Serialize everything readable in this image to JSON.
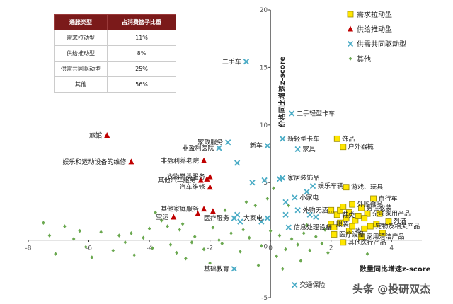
{
  "share_table": {
    "headers": [
      "通胀类型",
      "占消费篮子比重"
    ],
    "rows": [
      [
        "需求拉动型",
        "11%"
      ],
      [
        "供给推动型",
        "8%"
      ],
      [
        "供需共同驱动型",
        "25%"
      ],
      [
        "其他",
        "56%"
      ]
    ]
  },
  "watermark": "头条 @投研双杰",
  "chart_data": {
    "type": "scatter",
    "xlabel": "数量同比增速z-score",
    "ylabel": "价格同比增速z-score",
    "xlim": [
      -8,
      5
    ],
    "ylim": [
      -5,
      20
    ],
    "xticks": [
      "-8",
      "-6",
      "-4",
      "-2",
      "0",
      "2",
      "4"
    ],
    "yticks": [
      "-5",
      "0",
      "5",
      "10",
      "15",
      "20"
    ],
    "legend_position": "top-right",
    "colors": {
      "demand": "#f2d500",
      "supply": "#c00000",
      "both": "#4bacc6",
      "other": "#6aa84f"
    },
    "series": [
      {
        "key": "demand",
        "name": "需求拉动型",
        "marker": "square",
        "points": [
          {
            "x": 2.2,
            "y": 8.8,
            "label": "饰品"
          },
          {
            "x": 2.4,
            "y": 8.1,
            "label": "户外器械"
          },
          {
            "x": 2.5,
            "y": 4.6,
            "label": "游戏、玩具"
          },
          {
            "x": 3.4,
            "y": 3.6,
            "label": "自行车"
          },
          {
            "x": 2.7,
            "y": 3.1,
            "label": "外购食品"
          },
          {
            "x": 3.0,
            "y": 2.8,
            "label": "男性衣装"
          },
          {
            "x": 3.2,
            "y": 2.3,
            "label": "杂项家用产品"
          },
          {
            "x": 3.9,
            "y": 1.6,
            "label": "烈酒"
          },
          {
            "x": 3.3,
            "y": 1.2,
            "label": "宠物及相关产品"
          },
          {
            "x": 2.6,
            "y": 0.8,
            "label": "啤"
          },
          {
            "x": 2.1,
            "y": 0.5,
            "label": "医疗设备"
          },
          {
            "x": 3.0,
            "y": 0.3,
            "label": "家用清洁产品"
          },
          {
            "x": 2.4,
            "y": -0.2,
            "label": "其他医疗产品"
          },
          {
            "x": 2.2,
            "y": 2.2,
            "label": "鞋类"
          },
          {
            "x": 2.0,
            "y": 1.4,
            "label": "服装"
          },
          {
            "x": 2.3,
            "y": 2.6,
            "label": ""
          },
          {
            "x": 2.5,
            "y": 1.9,
            "label": ""
          },
          {
            "x": 2.8,
            "y": 1.7,
            "label": ""
          },
          {
            "x": 2.6,
            "y": 2.4,
            "label": ""
          },
          {
            "x": 3.1,
            "y": 1.9,
            "label": ""
          },
          {
            "x": 3.5,
            "y": 1.4,
            "label": ""
          },
          {
            "x": 3.6,
            "y": 2.3,
            "label": ""
          },
          {
            "x": 2.9,
            "y": 2.1,
            "label": ""
          },
          {
            "x": 2.3,
            "y": 1.5,
            "label": ""
          },
          {
            "x": 2.7,
            "y": 1.2,
            "label": ""
          },
          {
            "x": 3.1,
            "y": 1.0,
            "label": ""
          },
          {
            "x": 2.1,
            "y": 1.1,
            "label": ""
          },
          {
            "x": 3.7,
            "y": 0.6,
            "label": ""
          },
          {
            "x": 2.4,
            "y": 2.9,
            "label": ""
          },
          {
            "x": 2.0,
            "y": 2.6,
            "label": ""
          }
        ]
      },
      {
        "key": "supply",
        "name": "供给推动型",
        "marker": "triangle",
        "points": [
          {
            "x": -5.4,
            "y": 9.1,
            "label": "旅馆"
          },
          {
            "x": -4.6,
            "y": 6.8,
            "label": "娱乐和运动设备的维修"
          },
          {
            "x": -2.2,
            "y": 6.9,
            "label": "非盈利养老院"
          },
          {
            "x": -2.0,
            "y": 5.5,
            "label": "衣物鞋类服务"
          },
          {
            "x": -2.3,
            "y": 5.2,
            "label": "其他汽车服务"
          },
          {
            "x": -2.0,
            "y": 4.6,
            "label": "汽车维修"
          },
          {
            "x": -2.2,
            "y": 2.7,
            "label": "其他家庭服务"
          },
          {
            "x": -1.9,
            "y": 2.5,
            "label": ""
          },
          {
            "x": -2.4,
            "y": 2.3,
            "label": ""
          },
          {
            "x": -3.2,
            "y": 2.0,
            "label": "空运"
          },
          {
            "x": -2.1,
            "y": 5.3,
            "label": ""
          }
        ]
      },
      {
        "key": "both",
        "name": "供需共同驱动型",
        "marker": "x",
        "points": [
          {
            "x": -0.8,
            "y": 15.5,
            "label": "二手车"
          },
          {
            "x": 0.7,
            "y": 11.0,
            "label": "二手轻型卡车"
          },
          {
            "x": -1.4,
            "y": 8.5,
            "label": "家政服务"
          },
          {
            "x": -1.7,
            "y": 8.0,
            "label": "非盈利医院"
          },
          {
            "x": 0.4,
            "y": 8.8,
            "label": "新轻型卡车"
          },
          {
            "x": -0.1,
            "y": 8.2,
            "label": "新车"
          },
          {
            "x": 0.9,
            "y": 7.9,
            "label": "家具"
          },
          {
            "x": -1.1,
            "y": 6.7,
            "label": ""
          },
          {
            "x": 0.4,
            "y": 5.4,
            "label": "家居装饰品"
          },
          {
            "x": 1.4,
            "y": 4.7,
            "label": "娱乐车辆"
          },
          {
            "x": 1.2,
            "y": 4.2,
            "label": ""
          },
          {
            "x": 0.8,
            "y": 3.7,
            "label": "小家电"
          },
          {
            "x": 0.9,
            "y": 2.6,
            "label": "外购无酒…"
          },
          {
            "x": 1.3,
            "y": 2.2,
            "label": ""
          },
          {
            "x": 1.5,
            "y": 2.0,
            "label": ""
          },
          {
            "x": -0.1,
            "y": 1.9,
            "label": "大家电"
          },
          {
            "x": -1.2,
            "y": 1.9,
            "label": "医疗服务"
          },
          {
            "x": -1.0,
            "y": 1.6,
            "label": ""
          },
          {
            "x": -1.1,
            "y": 2.2,
            "label": ""
          },
          {
            "x": 0.6,
            "y": 1.1,
            "label": "信息处理设备"
          },
          {
            "x": -0.2,
            "y": 5.2,
            "label": ""
          },
          {
            "x": 0.3,
            "y": 5.3,
            "label": ""
          },
          {
            "x": -0.6,
            "y": 5.0,
            "label": ""
          },
          {
            "x": 0.5,
            "y": 3.3,
            "label": ""
          },
          {
            "x": -0.3,
            "y": 1.6,
            "label": ""
          },
          {
            "x": 0.5,
            "y": 2.2,
            "label": ""
          },
          {
            "x": -1.2,
            "y": -2.5,
            "label": "基础教育"
          },
          {
            "x": 0.8,
            "y": -3.9,
            "label": "交通保险"
          }
        ]
      },
      {
        "key": "other",
        "name": "其他",
        "marker": "diamond",
        "points": [
          {
            "x": -7.5,
            "y": 1.5
          },
          {
            "x": -7.3,
            "y": 0.4
          },
          {
            "x": -6.8,
            "y": 1.2
          },
          {
            "x": -7.1,
            "y": -1.2
          },
          {
            "x": -6.3,
            "y": 0.8
          },
          {
            "x": -6.1,
            "y": -0.6
          },
          {
            "x": -5.9,
            "y": -1.5
          },
          {
            "x": -5.6,
            "y": 0.7
          },
          {
            "x": -5.2,
            "y": -0.9
          },
          {
            "x": -4.8,
            "y": -0.2
          },
          {
            "x": -4.5,
            "y": -1.3
          },
          {
            "x": -4.2,
            "y": 0.2
          },
          {
            "x": -3.9,
            "y": -0.7
          },
          {
            "x": -3.6,
            "y": 1.7
          },
          {
            "x": -3.3,
            "y": -0.4
          },
          {
            "x": -3.0,
            "y": 0.9
          },
          {
            "x": -2.8,
            "y": -1.6
          },
          {
            "x": -2.5,
            "y": 0.3
          },
          {
            "x": -2.2,
            "y": -0.8
          },
          {
            "x": -1.9,
            "y": 1.1
          },
          {
            "x": -1.6,
            "y": -0.3
          },
          {
            "x": -1.3,
            "y": 0.6
          },
          {
            "x": -1.0,
            "y": -1.0
          },
          {
            "x": -0.7,
            "y": 0.2
          },
          {
            "x": -0.5,
            "y": 3.0
          },
          {
            "x": -0.3,
            "y": -0.5
          },
          {
            "x": 0.0,
            "y": 0.8
          },
          {
            "x": 0.2,
            "y": -1.4
          },
          {
            "x": 0.3,
            "y": 0.4
          },
          {
            "x": 0.5,
            "y": -0.8
          },
          {
            "x": 0.7,
            "y": 0.1
          },
          {
            "x": 0.9,
            "y": -0.4
          },
          {
            "x": 1.1,
            "y": 0.6
          },
          {
            "x": 1.3,
            "y": -0.9
          },
          {
            "x": 1.5,
            "y": 0.3
          },
          {
            "x": 1.7,
            "y": -0.3
          },
          {
            "x": 1.9,
            "y": -1.1
          },
          {
            "x": -3.8,
            "y": 2.4
          },
          {
            "x": -2.9,
            "y": 1.4
          },
          {
            "x": -1.5,
            "y": 2.6
          },
          {
            "x": -0.9,
            "y": 0.9
          },
          {
            "x": -4.0,
            "y": 1.0
          },
          {
            "x": -6.5,
            "y": 0.1
          },
          {
            "x": -5.0,
            "y": 0.4
          },
          {
            "x": -3.4,
            "y": 1.2
          },
          {
            "x": -0.4,
            "y": -2.2
          },
          {
            "x": 0.4,
            "y": -2.5
          },
          {
            "x": -2.0,
            "y": -2.0
          },
          {
            "x": 1.0,
            "y": -1.8
          },
          {
            "x": 1.8,
            "y": 0.9
          },
          {
            "x": -0.1,
            "y": 3.6
          },
          {
            "x": 0.1,
            "y": 4.5
          },
          {
            "x": -0.8,
            "y": 3.3
          },
          {
            "x": 0.6,
            "y": 3.0
          },
          {
            "x": 1.2,
            "y": 1.3
          },
          {
            "x": 3.2,
            "y": -1.2
          },
          {
            "x": -1.7,
            "y": 0.0
          },
          {
            "x": -2.6,
            "y": -0.2
          },
          {
            "x": -4.6,
            "y": 0.6
          },
          {
            "x": -3.1,
            "y": -1.1
          }
        ]
      }
    ]
  }
}
